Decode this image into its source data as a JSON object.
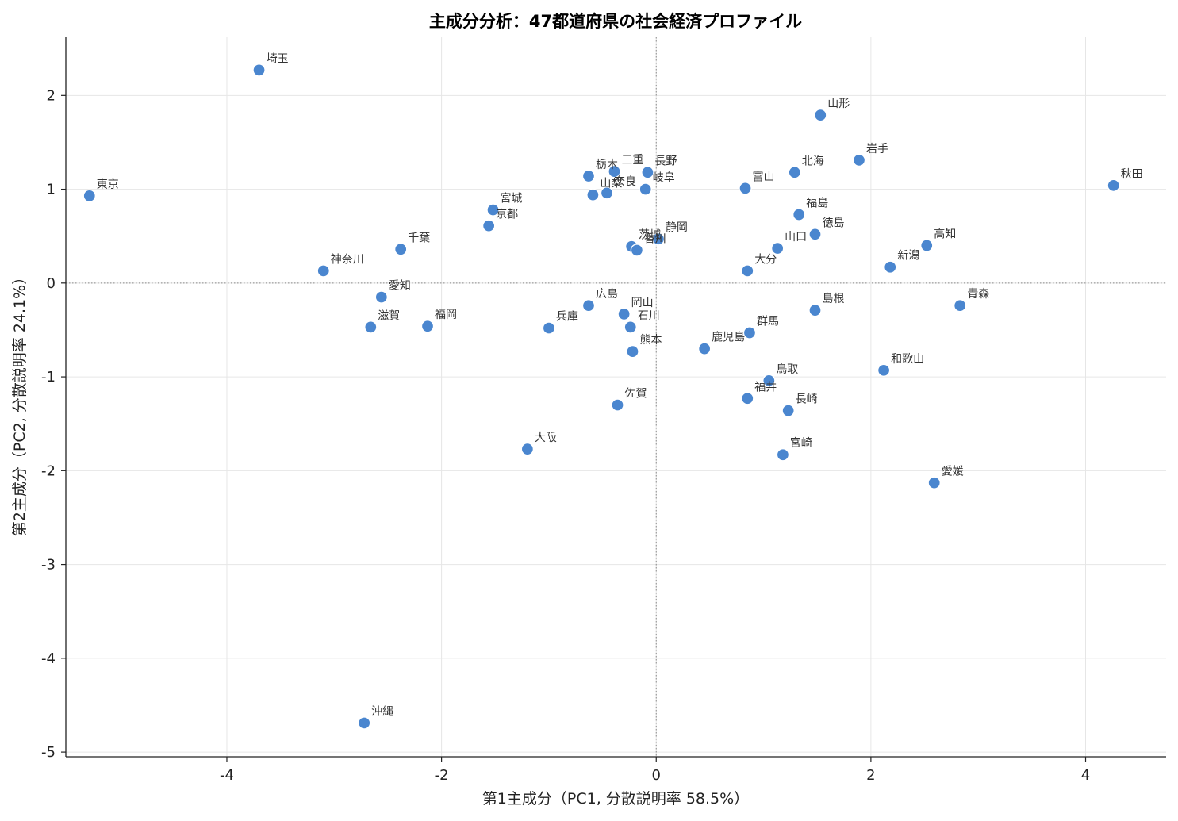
{
  "chart_data": {
    "type": "scatter",
    "title": "主成分分析：47都道府県の社会経済プロファイル",
    "xlabel": "第1主成分（PC1, 分散説明率 58.5%）",
    "ylabel": "第2主成分（PC2, 分散説明率 24.1%）",
    "xlim": [
      -5.5,
      4.75
    ],
    "ylim": [
      -5.05,
      2.62
    ],
    "xticks": [
      -4,
      -2,
      0,
      2,
      4
    ],
    "yticks": [
      -5,
      -4,
      -3,
      -2,
      -1,
      0,
      1,
      2
    ],
    "grid": true,
    "reference_lines": {
      "x": 0,
      "y": 0
    },
    "color": "#4a86cf",
    "points": [
      {
        "label": "東京",
        "x": -5.28,
        "y": 0.93
      },
      {
        "label": "埼玉",
        "x": -3.7,
        "y": 2.27
      },
      {
        "label": "神奈川",
        "x": -3.1,
        "y": 0.13
      },
      {
        "label": "沖縄",
        "x": -2.72,
        "y": -4.69
      },
      {
        "label": "滋賀",
        "x": -2.66,
        "y": -0.47
      },
      {
        "label": "愛知",
        "x": -2.56,
        "y": -0.15
      },
      {
        "label": "千葉",
        "x": -2.38,
        "y": 0.36
      },
      {
        "label": "福岡",
        "x": -2.13,
        "y": -0.46
      },
      {
        "label": "宮城",
        "x": -1.52,
        "y": 0.78
      },
      {
        "label": "京都",
        "x": -1.56,
        "y": 0.61
      },
      {
        "label": "大阪",
        "x": -1.2,
        "y": -1.77
      },
      {
        "label": "兵庫",
        "x": -1.0,
        "y": -0.48
      },
      {
        "label": "栃木",
        "x": -0.63,
        "y": 1.14
      },
      {
        "label": "広島",
        "x": -0.63,
        "y": -0.24
      },
      {
        "label": "山梨",
        "x": -0.59,
        "y": 0.94
      },
      {
        "label": "奈良",
        "x": -0.46,
        "y": 0.96
      },
      {
        "label": "三重",
        "x": -0.39,
        "y": 1.19
      },
      {
        "label": "佐賀",
        "x": -0.36,
        "y": -1.3
      },
      {
        "label": "岡山",
        "x": -0.3,
        "y": -0.33
      },
      {
        "label": "茨城",
        "x": -0.23,
        "y": 0.39
      },
      {
        "label": "石川",
        "x": -0.24,
        "y": -0.47
      },
      {
        "label": "熊本",
        "x": -0.22,
        "y": -0.73
      },
      {
        "label": "香川",
        "x": -0.18,
        "y": 0.35
      },
      {
        "label": "長野",
        "x": -0.08,
        "y": 1.18
      },
      {
        "label": "岐阜",
        "x": -0.1,
        "y": 1.0
      },
      {
        "label": "静岡",
        "x": 0.02,
        "y": 0.47
      },
      {
        "label": "鹿児島",
        "x": 0.45,
        "y": -0.7
      },
      {
        "label": "富山",
        "x": 0.83,
        "y": 1.01
      },
      {
        "label": "大分",
        "x": 0.85,
        "y": 0.13
      },
      {
        "label": "福井",
        "x": 0.85,
        "y": -1.23
      },
      {
        "label": "群馬",
        "x": 0.87,
        "y": -0.53
      },
      {
        "label": "鳥取",
        "x": 1.05,
        "y": -1.04
      },
      {
        "label": "山口",
        "x": 1.13,
        "y": 0.37
      },
      {
        "label": "宮崎",
        "x": 1.18,
        "y": -1.83
      },
      {
        "label": "長崎",
        "x": 1.23,
        "y": -1.36
      },
      {
        "label": "北海",
        "x": 1.29,
        "y": 1.18
      },
      {
        "label": "福島",
        "x": 1.33,
        "y": 0.73
      },
      {
        "label": "徳島",
        "x": 1.48,
        "y": 0.52
      },
      {
        "label": "島根",
        "x": 1.48,
        "y": -0.29
      },
      {
        "label": "山形",
        "x": 1.53,
        "y": 1.79
      },
      {
        "label": "岩手",
        "x": 1.89,
        "y": 1.31
      },
      {
        "label": "和歌山",
        "x": 2.12,
        "y": -0.93
      },
      {
        "label": "新潟",
        "x": 2.18,
        "y": 0.17
      },
      {
        "label": "高知",
        "x": 2.52,
        "y": 0.4
      },
      {
        "label": "愛媛",
        "x": 2.59,
        "y": -2.13
      },
      {
        "label": "青森",
        "x": 2.83,
        "y": -0.24
      },
      {
        "label": "秋田",
        "x": 4.26,
        "y": 1.04
      }
    ]
  }
}
